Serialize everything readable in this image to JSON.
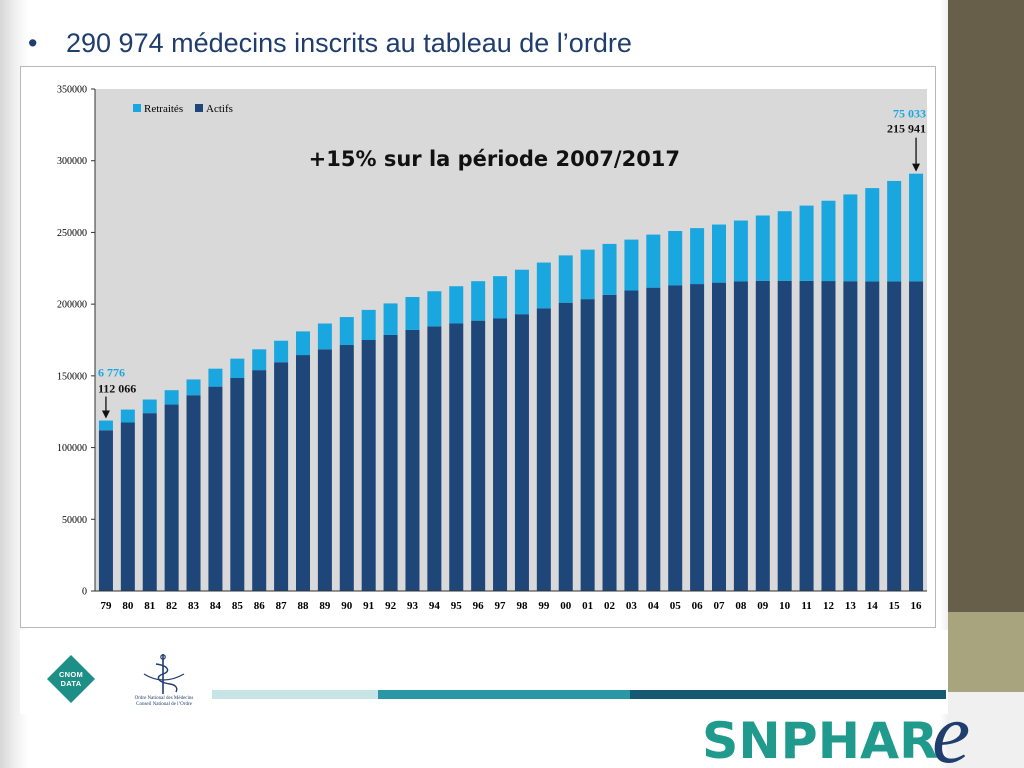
{
  "slide": {
    "bullet": "•",
    "title": "290 974 médecins inscrits au tableau de l’ordre"
  },
  "chart_data": {
    "type": "bar",
    "stacked": true,
    "headline": "+15% sur la période 2007/2017",
    "categories": [
      "79",
      "80",
      "81",
      "82",
      "83",
      "84",
      "85",
      "86",
      "87",
      "88",
      "89",
      "90",
      "91",
      "92",
      "93",
      "94",
      "95",
      "96",
      "97",
      "98",
      "99",
      "00",
      "01",
      "02",
      "03",
      "04",
      "05",
      "06",
      "07",
      "08",
      "09",
      "10",
      "11",
      "12",
      "13",
      "14",
      "15",
      "16"
    ],
    "series": [
      {
        "name": "Actifs",
        "color": "#1f4678",
        "values": [
          112066,
          117500,
          124000,
          130000,
          136500,
          142500,
          148500,
          154000,
          159500,
          164500,
          168500,
          171500,
          175000,
          178500,
          182000,
          184500,
          186500,
          188500,
          190000,
          193000,
          197000,
          201000,
          203500,
          206500,
          209500,
          211500,
          213000,
          214000,
          215000,
          215800,
          216300,
          216300,
          216200,
          216100,
          216000,
          215900,
          215900,
          215941
        ]
      },
      {
        "name": "Retraités",
        "color": "#1aa7e0",
        "values": [
          6776,
          9000,
          9500,
          10000,
          11000,
          12500,
          13500,
          14500,
          15000,
          16500,
          18000,
          19500,
          21000,
          22000,
          23000,
          24500,
          26000,
          27500,
          29500,
          31000,
          32000,
          33000,
          34500,
          35500,
          35500,
          37000,
          38000,
          39000,
          40500,
          42500,
          45500,
          48500,
          52500,
          56000,
          60500,
          65000,
          70000,
          75033
        ]
      }
    ],
    "ylim": [
      0,
      350000
    ],
    "yticks": [
      0,
      50000,
      100000,
      150000,
      200000,
      250000,
      300000,
      350000
    ],
    "legend": "top-left",
    "grid": false,
    "annotations": {
      "first": {
        "category": "79",
        "retraites_label": "6 776",
        "actifs_label": "112 066"
      },
      "last": {
        "category": "16",
        "retraites_label": "75 033",
        "actifs_label": "215 941"
      }
    }
  },
  "footer": {
    "cnom_logo_text": "CNOM DATA",
    "ordre_line1": "Ordre National des Médecins",
    "ordre_line2": "Conseil National de l’Ordre",
    "brand": "SNPHAR",
    "brand_suffix": "e",
    "brand_color": "#1f9a8c",
    "brand_e_color": "#1f3d6e"
  },
  "colors": {
    "plot_background": "#d9d9d9",
    "side_dark": "#675f4a",
    "side_light": "#a8a47e",
    "title": "#1f3d6e"
  }
}
